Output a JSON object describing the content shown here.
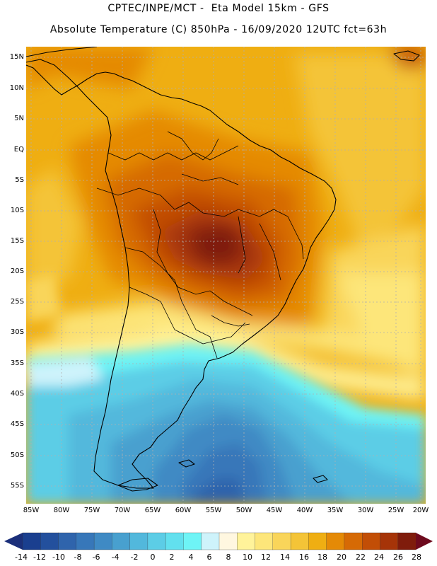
{
  "header": {
    "line1": "CPTEC/INPE/MCT -  Eta Model 15km - GFS",
    "line2": "Absolute Temperature (C) 850hPa - 16/09/2020 12UTC fct=63h"
  },
  "map": {
    "lat_labels": [
      "15N",
      "10N",
      "5N",
      "EQ",
      "5S",
      "10S",
      "15S",
      "20S",
      "25S",
      "30S",
      "35S",
      "40S",
      "45S",
      "50S",
      "55S"
    ],
    "lon_labels": [
      "85W",
      "80W",
      "75W",
      "70W",
      "65W",
      "60W",
      "55W",
      "50W",
      "45W",
      "40W",
      "35W",
      "30W",
      "25W",
      "20W"
    ],
    "grid": "dotted"
  },
  "colorbar": {
    "labels": [
      "-14",
      "-12",
      "-10",
      "-8",
      "-6",
      "-4",
      "-2",
      "0",
      "2",
      "4",
      "6",
      "8",
      "10",
      "12",
      "14",
      "16",
      "18",
      "20",
      "22",
      "24",
      "26",
      "28"
    ],
    "colors": [
      "#1a3f8f",
      "#23509d",
      "#2f64ac",
      "#3777b9",
      "#3f8ac4",
      "#48a0cf",
      "#52b8dc",
      "#5ccde6",
      "#62e0ee",
      "#6ef4f6",
      "#cef3fb",
      "#fff7e0",
      "#fff39a",
      "#fde67a",
      "#f9d55a",
      "#f4c437",
      "#efae12",
      "#e58a06",
      "#d66a05",
      "#c24e06",
      "#a63408",
      "#7f1c0c"
    ],
    "end_low_color": "#1b2f7a",
    "end_high_color": "#6e0a1e"
  }
}
